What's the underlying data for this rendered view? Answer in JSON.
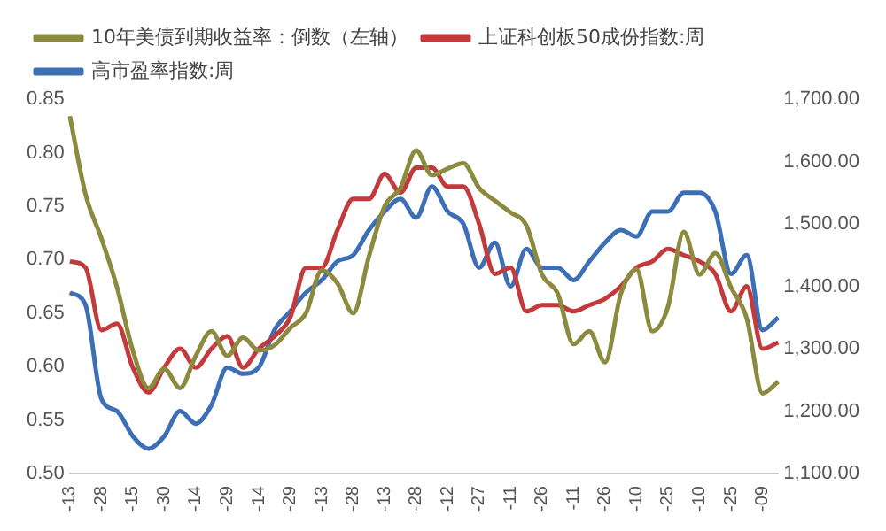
{
  "chart_data": {
    "type": "line",
    "categories": [
      "-13",
      null,
      "-28",
      null,
      "-15",
      null,
      "-30",
      null,
      "-14",
      null,
      "-29",
      null,
      "-14",
      null,
      "-29",
      null,
      "-13",
      null,
      "-28",
      null,
      "-13",
      null,
      "-28",
      null,
      "-12",
      null,
      "-27",
      null,
      "-11",
      null,
      "-26",
      null,
      "-11",
      null,
      "-26",
      null,
      "-10",
      null,
      "-25",
      null,
      "-10",
      null,
      "-25",
      null,
      "-09",
      null
    ],
    "series": [
      {
        "name": "10年美债到期收益率：倒数（左轴）",
        "color": "#8c8a3e",
        "values": [
          0.834,
          0.761,
          0.72,
          0.674,
          0.615,
          0.58,
          0.598,
          0.58,
          0.61,
          0.633,
          0.61,
          0.627,
          0.615,
          0.62,
          0.636,
          0.65,
          0.69,
          0.678,
          0.65,
          0.703,
          0.75,
          0.767,
          0.802,
          0.779,
          0.785,
          0.79,
          0.767,
          0.755,
          0.744,
          0.732,
          0.686,
          0.668,
          0.621,
          0.633,
          0.604,
          0.668,
          0.691,
          0.633,
          0.656,
          0.726,
          0.686,
          0.706,
          0.674,
          0.645,
          0.575,
          0.586
        ]
      },
      {
        "name": "上证科创板50成份指数:周",
        "color": "#c23a3c",
        "axis": "y2",
        "values": [
          1440,
          1430,
          1330,
          1340,
          1270,
          1230,
          1270,
          1300,
          1270,
          1300,
          1320,
          1270,
          1300,
          1320,
          1350,
          1430,
          1430,
          1490,
          1540,
          1540,
          1580,
          1550,
          1590,
          1590,
          1560,
          1560,
          1500,
          1420,
          1430,
          1360,
          1370,
          1370,
          1360,
          1370,
          1380,
          1400,
          1430,
          1440,
          1460,
          1450,
          1440,
          1420,
          1360,
          1400,
          1300,
          1310
        ]
      },
      {
        "name": "高市盈率指数:周",
        "color": "#3c6fb6",
        "axis": "y2",
        "values": [
          1390,
          1370,
          1220,
          1200,
          1160,
          1140,
          1160,
          1200,
          1180,
          1210,
          1270,
          1260,
          1270,
          1330,
          1360,
          1390,
          1410,
          1440,
          1450,
          1490,
          1520,
          1540,
          1510,
          1560,
          1520,
          1500,
          1430,
          1470,
          1400,
          1460,
          1430,
          1430,
          1410,
          1440,
          1470,
          1490,
          1480,
          1520,
          1520,
          1550,
          1550,
          1520,
          1420,
          1450,
          1330,
          1350
        ]
      }
    ],
    "ylim": [
      0.5,
      0.85
    ],
    "yticks": [
      {
        "value": 0.5,
        "label": "0.50"
      },
      {
        "value": 0.55,
        "label": "0.55"
      },
      {
        "value": 0.6,
        "label": "0.60"
      },
      {
        "value": 0.65,
        "label": "0.65"
      },
      {
        "value": 0.7,
        "label": "0.70"
      },
      {
        "value": 0.75,
        "label": "0.75"
      },
      {
        "value": 0.8,
        "label": "0.80"
      },
      {
        "value": 0.85,
        "label": "0.85"
      }
    ],
    "y2lim": [
      1100,
      1700
    ],
    "y2ticks": [
      {
        "value": 1100,
        "label": "1,100.00"
      },
      {
        "value": 1200,
        "label": "1,200.00"
      },
      {
        "value": 1300,
        "label": "1,300.00"
      },
      {
        "value": 1400,
        "label": "1,400.00"
      },
      {
        "value": 1500,
        "label": "1,500.00"
      },
      {
        "value": 1600,
        "label": "1,600.00"
      },
      {
        "value": 1700,
        "label": "1,700.00"
      }
    ],
    "grid": false,
    "legend": "top",
    "marker": "none",
    "line_style": "solid"
  }
}
